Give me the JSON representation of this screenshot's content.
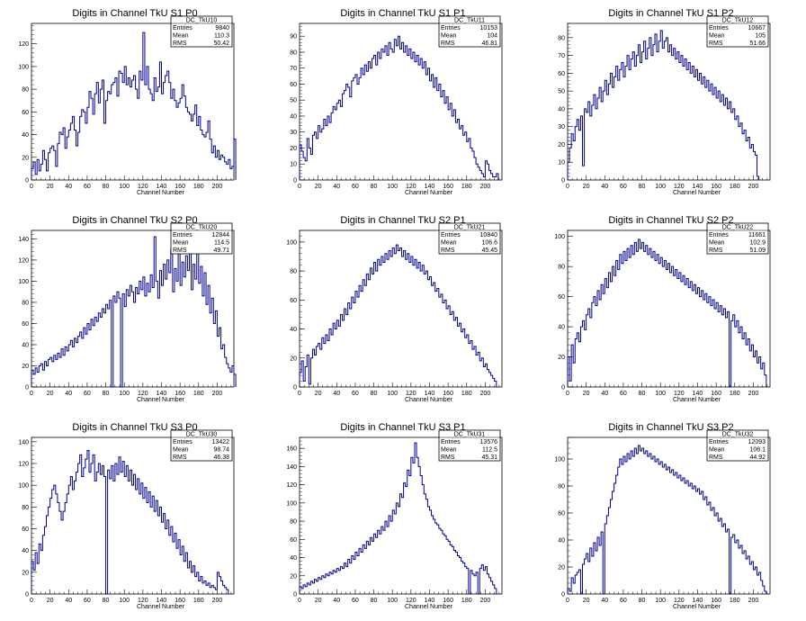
{
  "figure": {
    "xlabel": "Channel Number",
    "line_color": "#00008b"
  },
  "chart_data": [
    {
      "type": "histogram",
      "title": "Digits in Channel TkU S1 P0",
      "xlabel": "Channel Number",
      "xlim": [
        0,
        218
      ],
      "ylim": [
        0,
        138
      ],
      "yticks": [
        0,
        20,
        40,
        60,
        80,
        100,
        120
      ],
      "xticks": [
        0,
        20,
        40,
        60,
        80,
        100,
        120,
        140,
        160,
        180,
        200
      ],
      "stats": {
        "name": "DC_TkU10",
        "Entries": "9840",
        "Mean": "110.3",
        "RMS": "50.42"
      },
      "x_start": 0,
      "bin_width": 2,
      "values": [
        10,
        16,
        5,
        18,
        8,
        14,
        26,
        18,
        8,
        24,
        28,
        30,
        26,
        12,
        32,
        42,
        40,
        46,
        28,
        38,
        44,
        50,
        56,
        44,
        30,
        42,
        56,
        62,
        60,
        50,
        64,
        78,
        72,
        58,
        76,
        86,
        68,
        80,
        88,
        50,
        70,
        78,
        76,
        84,
        86,
        90,
        74,
        96,
        94,
        86,
        100,
        84,
        90,
        82,
        88,
        92,
        80,
        72,
        96,
        88,
        130,
        84,
        100,
        80,
        76,
        70,
        90,
        78,
        82,
        104,
        76,
        86,
        92,
        96,
        86,
        72,
        80,
        70,
        64,
        68,
        72,
        84,
        74,
        64,
        60,
        58,
        52,
        58,
        66,
        48,
        56,
        44,
        40,
        38,
        42,
        52,
        36,
        24,
        30,
        20,
        26,
        18,
        22,
        20,
        16,
        14,
        18,
        10,
        12,
        36
      ]
    },
    {
      "type": "histogram",
      "title": "Digits in Channel TkU S1 P1",
      "xlabel": "Channel Number",
      "xlim": [
        0,
        218
      ],
      "ylim": [
        0,
        98
      ],
      "yticks": [
        0,
        10,
        20,
        30,
        40,
        50,
        60,
        70,
        80,
        90
      ],
      "xticks": [
        0,
        20,
        40,
        60,
        80,
        100,
        120,
        140,
        160,
        180,
        200
      ],
      "stats": {
        "name": "DC_TkU11",
        "Entries": "10153",
        "Mean": "104",
        "RMS": "46.81"
      },
      "x_start": 0,
      "bin_width": 2,
      "values": [
        22,
        18,
        14,
        12,
        26,
        20,
        16,
        28,
        30,
        26,
        34,
        30,
        32,
        38,
        34,
        40,
        36,
        42,
        46,
        44,
        48,
        50,
        46,
        54,
        56,
        60,
        58,
        52,
        62,
        64,
        66,
        60,
        64,
        70,
        66,
        72,
        68,
        74,
        70,
        76,
        78,
        72,
        80,
        76,
        82,
        80,
        84,
        78,
        86,
        82,
        80,
        88,
        84,
        90,
        82,
        86,
        80,
        84,
        78,
        82,
        76,
        80,
        74,
        78,
        72,
        76,
        70,
        74,
        66,
        70,
        62,
        66,
        58,
        64,
        56,
        60,
        52,
        56,
        48,
        52,
        44,
        48,
        40,
        44,
        36,
        38,
        32,
        34,
        28,
        30,
        24,
        26,
        20,
        18,
        14,
        10,
        8,
        6,
        4,
        2,
        12,
        10,
        6,
        4,
        2,
        2,
        4
      ]
    },
    {
      "type": "histogram",
      "title": "Digits in Channel TkU S1 P2",
      "xlabel": "Channel Number",
      "xlim": [
        0,
        218
      ],
      "ylim": [
        0,
        88
      ],
      "yticks": [
        0,
        10,
        20,
        30,
        40,
        50,
        60,
        70,
        80
      ],
      "xticks": [
        0,
        20,
        40,
        60,
        80,
        100,
        120,
        140,
        160,
        180,
        200
      ],
      "stats": {
        "name": "DC_TkU12",
        "Entries": "10667",
        "Mean": "105",
        "RMS": "51.66"
      },
      "x_start": 0,
      "bin_width": 2,
      "values": [
        10,
        18,
        26,
        22,
        30,
        34,
        28,
        36,
        8,
        40,
        38,
        44,
        36,
        42,
        48,
        40,
        46,
        52,
        44,
        50,
        56,
        48,
        54,
        60,
        52,
        58,
        64,
        56,
        62,
        66,
        58,
        64,
        70,
        62,
        68,
        72,
        64,
        70,
        76,
        66,
        72,
        78,
        68,
        74,
        80,
        70,
        76,
        82,
        72,
        78,
        84,
        74,
        78,
        80,
        72,
        76,
        70,
        74,
        68,
        72,
        66,
        70,
        64,
        68,
        62,
        66,
        60,
        64,
        58,
        62,
        56,
        60,
        54,
        58,
        52,
        56,
        50,
        54,
        48,
        52,
        46,
        50,
        44,
        48,
        42,
        46,
        40,
        44,
        38,
        40,
        34,
        36,
        30,
        32,
        26,
        28,
        22,
        24,
        18,
        20,
        16,
        14,
        2
      ]
    },
    {
      "type": "histogram",
      "title": "Digits in Channel TkU S2 P0",
      "xlabel": "Channel Number",
      "xlim": [
        0,
        218
      ],
      "ylim": [
        0,
        148
      ],
      "yticks": [
        0,
        20,
        40,
        60,
        80,
        100,
        120,
        140
      ],
      "xticks": [
        0,
        20,
        40,
        60,
        80,
        100,
        120,
        140,
        160,
        180,
        200
      ],
      "stats": {
        "name": "DC_TkU20",
        "Entries": "12844",
        "Mean": "114.5",
        "RMS": "49.71"
      },
      "x_start": 0,
      "bin_width": 2,
      "values": [
        16,
        12,
        18,
        14,
        20,
        22,
        16,
        24,
        20,
        26,
        28,
        24,
        30,
        26,
        32,
        28,
        36,
        30,
        38,
        34,
        40,
        44,
        38,
        46,
        42,
        48,
        52,
        46,
        56,
        50,
        60,
        54,
        64,
        58,
        66,
        62,
        70,
        66,
        74,
        70,
        78,
        74,
        82,
        0,
        86,
        80,
        90,
        84,
        0,
        88,
        76,
        92,
        86,
        96,
        90,
        80,
        94,
        88,
        100,
        92,
        104,
        86,
        98,
        90,
        106,
        94,
        142,
        100,
        84,
        110,
        96,
        116,
        102,
        120,
        108,
        130,
        90,
        112,
        100,
        140,
        96,
        118,
        104,
        124,
        110,
        128,
        92,
        116,
        102,
        132,
        98,
        114,
        86,
        108,
        78,
        96,
        70,
        84,
        60,
        72,
        48,
        56,
        36,
        40,
        28,
        22,
        18,
        14,
        20,
        12
      ]
    },
    {
      "type": "histogram",
      "title": "Digits in Channel TkU S2 P1",
      "xlabel": "Channel Number",
      "xlim": [
        0,
        218
      ],
      "ylim": [
        0,
        108
      ],
      "yticks": [
        0,
        20,
        40,
        60,
        80,
        100
      ],
      "xticks": [
        0,
        20,
        40,
        60,
        80,
        100,
        120,
        140,
        160,
        180,
        200
      ],
      "stats": {
        "name": "DC_TkU21",
        "Entries": "10840",
        "Mean": "106.6",
        "RMS": "45.45"
      },
      "x_start": 0,
      "bin_width": 2,
      "values": [
        10,
        18,
        4,
        14,
        22,
        2,
        20,
        26,
        22,
        28,
        30,
        26,
        34,
        30,
        36,
        32,
        40,
        36,
        44,
        40,
        46,
        42,
        50,
        46,
        54,
        50,
        58,
        54,
        62,
        58,
        66,
        62,
        70,
        66,
        74,
        70,
        78,
        74,
        82,
        78,
        86,
        80,
        88,
        84,
        90,
        86,
        92,
        88,
        94,
        90,
        96,
        92,
        98,
        94,
        96,
        90,
        94,
        88,
        92,
        86,
        90,
        84,
        88,
        82,
        86,
        80,
        84,
        78,
        80,
        74,
        76,
        70,
        72,
        66,
        68,
        62,
        64,
        58,
        60,
        54,
        56,
        50,
        52,
        46,
        48,
        42,
        44,
        38,
        40,
        34,
        36,
        30,
        32,
        26,
        28,
        22,
        24,
        18,
        20,
        14,
        16,
        12,
        10,
        8,
        6,
        4
      ]
    },
    {
      "type": "histogram",
      "title": "Digits in Channel TkU S2 P2",
      "xlabel": "Channel Number",
      "xlim": [
        0,
        218
      ],
      "ylim": [
        0,
        104
      ],
      "yticks": [
        0,
        20,
        40,
        60,
        80,
        100
      ],
      "xticks": [
        0,
        20,
        40,
        60,
        80,
        100,
        120,
        140,
        160,
        180,
        200
      ],
      "stats": {
        "name": "DC_TkU22",
        "Entries": "11661",
        "Mean": "102.9",
        "RMS": "51.09"
      },
      "x_start": 0,
      "bin_width": 2,
      "values": [
        20,
        4,
        28,
        16,
        32,
        36,
        30,
        40,
        44,
        38,
        48,
        52,
        46,
        56,
        60,
        54,
        64,
        58,
        68,
        62,
        72,
        66,
        76,
        70,
        80,
        74,
        84,
        78,
        88,
        82,
        90,
        84,
        92,
        86,
        94,
        88,
        96,
        90,
        98,
        92,
        96,
        90,
        94,
        88,
        92,
        86,
        90,
        84,
        88,
        82,
        86,
        80,
        84,
        78,
        82,
        76,
        80,
        74,
        78,
        72,
        76,
        70,
        74,
        68,
        72,
        66,
        70,
        64,
        68,
        62,
        66,
        60,
        64,
        58,
        62,
        56,
        60,
        54,
        58,
        52,
        56,
        50,
        54,
        48,
        52,
        46,
        50,
        0,
        44,
        48,
        40,
        44,
        36,
        40,
        32,
        36,
        28,
        32,
        24,
        28,
        20,
        24,
        16,
        20,
        12,
        16,
        8
      ]
    },
    {
      "type": "histogram",
      "title": "Digits in Channel TkU S3 P0",
      "xlabel": "Channel Number",
      "xlim": [
        0,
        218
      ],
      "ylim": [
        0,
        144
      ],
      "yticks": [
        0,
        20,
        40,
        60,
        80,
        100,
        120,
        140
      ],
      "xticks": [
        0,
        20,
        40,
        60,
        80,
        100,
        120,
        140,
        160,
        180,
        200
      ],
      "stats": {
        "name": "DC_TkU30",
        "Entries": "13422",
        "Mean": "98.74",
        "RMS": "46.38"
      },
      "x_start": 0,
      "bin_width": 2,
      "values": [
        30,
        22,
        38,
        28,
        46,
        40,
        54,
        62,
        72,
        80,
        88,
        96,
        100,
        92,
        84,
        76,
        68,
        76,
        84,
        92,
        100,
        108,
        96,
        104,
        112,
        120,
        128,
        108,
        116,
        124,
        132,
        112,
        120,
        128,
        104,
        112,
        120,
        110,
        118,
        108,
        0,
        114,
        106,
        118,
        104,
        120,
        110,
        126,
        112,
        122,
        108,
        118,
        104,
        114,
        100,
        110,
        96,
        106,
        92,
        102,
        88,
        98,
        84,
        94,
        80,
        90,
        76,
        86,
        72,
        80,
        66,
        74,
        60,
        68,
        54,
        62,
        48,
        56,
        42,
        50,
        36,
        44,
        30,
        38,
        24,
        30,
        20,
        26,
        16,
        20,
        12,
        16,
        10,
        12,
        8,
        10,
        6,
        8,
        6,
        4,
        20,
        16,
        12,
        8,
        6,
        4
      ]
    },
    {
      "type": "histogram",
      "title": "Digits in Channel TkU S3 P1",
      "xlabel": "Channel Number",
      "xlim": [
        0,
        218
      ],
      "ylim": [
        0,
        172
      ],
      "yticks": [
        0,
        20,
        40,
        60,
        80,
        100,
        120,
        140,
        160
      ],
      "xticks": [
        0,
        20,
        40,
        60,
        80,
        100,
        120,
        140,
        160,
        180,
        200
      ],
      "stats": {
        "name": "DC_TkU31",
        "Entries": "13576",
        "Mean": "112.5",
        "RMS": "45.31"
      },
      "x_start": 0,
      "bin_width": 2,
      "values": [
        8,
        6,
        10,
        8,
        12,
        10,
        14,
        12,
        16,
        14,
        18,
        16,
        20,
        18,
        22,
        20,
        24,
        22,
        26,
        24,
        28,
        26,
        30,
        28,
        34,
        30,
        38,
        34,
        42,
        38,
        46,
        42,
        50,
        46,
        54,
        50,
        58,
        54,
        62,
        58,
        66,
        62,
        70,
        66,
        74,
        70,
        80,
        74,
        86,
        80,
        92,
        88,
        100,
        96,
        110,
        106,
        122,
        118,
        136,
        130,
        150,
        144,
        166,
        150,
        140,
        130,
        120,
        110,
        104,
        96,
        92,
        86,
        82,
        78,
        76,
        72,
        70,
        66,
        64,
        60,
        58,
        54,
        52,
        48,
        46,
        42,
        40,
        36,
        34,
        30,
        28,
        0,
        26,
        22,
        20,
        24,
        0,
        28,
        32,
        26,
        30,
        22,
        18,
        14,
        10,
        6
      ]
    },
    {
      "type": "histogram",
      "title": "Digits in Channel TkU S3 P2",
      "xlabel": "Channel Number",
      "xlim": [
        0,
        218
      ],
      "ylim": [
        0,
        116
      ],
      "yticks": [
        0,
        20,
        40,
        60,
        80,
        100
      ],
      "xticks": [
        0,
        20,
        40,
        60,
        80,
        100,
        120,
        140,
        160,
        180,
        200
      ],
      "stats": {
        "name": "DC_TkU32",
        "Entries": "12093",
        "Mean": "106.1",
        "RMS": "44.92"
      },
      "x_start": 0,
      "bin_width": 2,
      "values": [
        4,
        2,
        12,
        8,
        14,
        16,
        18,
        0,
        22,
        26,
        30,
        24,
        34,
        28,
        38,
        32,
        42,
        36,
        46,
        0,
        52,
        58,
        64,
        70,
        76,
        82,
        88,
        94,
        100,
        96,
        102,
        98,
        104,
        100,
        106,
        102,
        108,
        104,
        110,
        106,
        108,
        104,
        106,
        102,
        104,
        100,
        102,
        98,
        100,
        96,
        98,
        94,
        96,
        92,
        94,
        90,
        92,
        88,
        90,
        86,
        88,
        84,
        86,
        82,
        84,
        80,
        82,
        78,
        80,
        76,
        78,
        74,
        76,
        70,
        72,
        66,
        68,
        62,
        64,
        58,
        60,
        54,
        56,
        50,
        52,
        46,
        48,
        0,
        42,
        44,
        38,
        40,
        34,
        36,
        30,
        32,
        26,
        28,
        22,
        24,
        18,
        20,
        14,
        16,
        10,
        6,
        2
      ]
    }
  ]
}
